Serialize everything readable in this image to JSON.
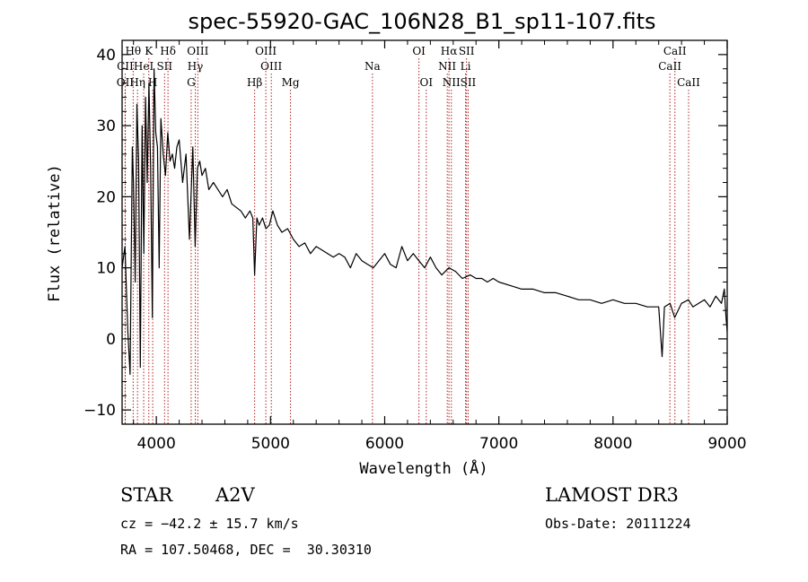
{
  "chart_data": {
    "type": "line",
    "title": "spec-55920-GAC_106N28_B1_sp11-107.fits",
    "xlabel": "Wavelength (Å)",
    "ylabel": "Flux (relative)",
    "xlim": [
      3700,
      9000
    ],
    "ylim": [
      -12,
      42
    ],
    "xticks": [
      4000,
      5000,
      6000,
      7000,
      8000,
      9000
    ],
    "yticks": [
      -10,
      0,
      10,
      20,
      30,
      40
    ],
    "series": [
      {
        "name": "spectrum",
        "x": [
          3700,
          3725,
          3750,
          3770,
          3790,
          3800,
          3815,
          3830,
          3845,
          3860,
          3875,
          3890,
          3905,
          3920,
          3935,
          3950,
          3965,
          3980,
          3995,
          4010,
          4025,
          4040,
          4060,
          4080,
          4100,
          4120,
          4140,
          4160,
          4180,
          4200,
          4230,
          4260,
          4290,
          4320,
          4340,
          4360,
          4380,
          4400,
          4430,
          4460,
          4500,
          4540,
          4580,
          4620,
          4660,
          4700,
          4740,
          4780,
          4820,
          4845,
          4861,
          4880,
          4900,
          4930,
          4960,
          4990,
          5020,
          5060,
          5100,
          5150,
          5200,
          5250,
          5300,
          5350,
          5400,
          5450,
          5500,
          5550,
          5600,
          5650,
          5700,
          5750,
          5800,
          5850,
          5900,
          5950,
          6000,
          6050,
          6100,
          6150,
          6200,
          6250,
          6300,
          6350,
          6400,
          6450,
          6500,
          6563,
          6620,
          6680,
          6750,
          6800,
          6850,
          6900,
          6950,
          7000,
          7100,
          7200,
          7300,
          7400,
          7500,
          7600,
          7700,
          7800,
          7900,
          8000,
          8100,
          8200,
          8300,
          8400,
          8430,
          8450,
          8500,
          8540,
          8600,
          8660,
          8700,
          8750,
          8800,
          8850,
          8900,
          8950,
          8975,
          8990,
          9000
        ],
        "y": [
          10,
          13,
          1,
          -5,
          27,
          22,
          8,
          33,
          25,
          -4,
          30,
          12,
          34,
          22,
          36,
          24,
          3,
          38,
          29,
          27,
          10,
          31,
          26,
          23,
          29,
          25,
          26,
          24,
          27,
          28,
          22,
          26,
          14,
          27,
          13,
          24,
          25,
          23,
          24,
          21,
          22,
          21,
          20,
          21,
          19,
          18.5,
          18,
          17,
          18,
          17,
          9,
          17,
          16,
          17,
          15.5,
          16,
          18,
          16,
          15,
          15.5,
          14,
          13,
          13.5,
          12,
          13,
          12.5,
          12,
          11.5,
          12,
          11.5,
          10,
          12,
          11,
          10.5,
          10,
          11,
          12,
          10.5,
          10,
          13,
          11,
          12,
          11,
          10,
          11.5,
          10,
          9,
          10,
          9.5,
          8.5,
          9,
          8.5,
          8.5,
          8,
          8.5,
          8,
          7.5,
          7,
          7,
          6.5,
          6.5,
          6,
          5.5,
          5.5,
          5,
          5.5,
          5,
          5,
          4.5,
          4.5,
          -2.5,
          4.5,
          5,
          3,
          5,
          5.5,
          4.5,
          5,
          5.5,
          4.5,
          6,
          5,
          7,
          3,
          1
        ]
      }
    ],
    "spectral_lines": [
      {
        "label": "CII",
        "x": 3727,
        "row": 2
      },
      {
        "label": "Hθ",
        "x": 3797,
        "row": 1
      },
      {
        "label": "OII",
        "x": 3727,
        "row": 3
      },
      {
        "label": "Hη",
        "x": 3835,
        "row": 3
      },
      {
        "label": "HeI",
        "x": 3889,
        "row": 2
      },
      {
        "label": "K",
        "x": 3934,
        "row": 1
      },
      {
        "label": "H",
        "x": 3968,
        "row": 3
      },
      {
        "label": "SII",
        "x": 4072,
        "row": 2
      },
      {
        "label": "Hδ",
        "x": 4102,
        "row": 1
      },
      {
        "label": "OIII",
        "x": 4363,
        "row": 1
      },
      {
        "label": "Hγ",
        "x": 4341,
        "row": 2
      },
      {
        "label": "G",
        "x": 4305,
        "row": 3
      },
      {
        "label": "Hβ",
        "x": 4861,
        "row": 3
      },
      {
        "label": "OIII",
        "x": 4959,
        "row": 1
      },
      {
        "label": "OIII",
        "x": 5007,
        "row": 2
      },
      {
        "label": "Mg",
        "x": 5175,
        "row": 3
      },
      {
        "label": "Na",
        "x": 5893,
        "row": 2
      },
      {
        "label": "OI",
        "x": 6300,
        "row": 1
      },
      {
        "label": "OI",
        "x": 6364,
        "row": 3
      },
      {
        "label": "Hα",
        "x": 6563,
        "row": 1
      },
      {
        "label": "SII",
        "x": 6717,
        "row": 1
      },
      {
        "label": "NII",
        "x": 6548,
        "row": 2
      },
      {
        "label": "Li",
        "x": 6708,
        "row": 2
      },
      {
        "label": "NII",
        "x": 6584,
        "row": 3
      },
      {
        "label": "SII",
        "x": 6731,
        "row": 3
      },
      {
        "label": "CaII",
        "x": 8542,
        "row": 1
      },
      {
        "label": "CaII",
        "x": 8498,
        "row": 2
      },
      {
        "label": "CaII",
        "x": 8662,
        "row": 3
      }
    ]
  },
  "info": {
    "object_class": "STAR",
    "subclass": "A2V",
    "survey": "LAMOST DR3",
    "cz": "cz = −42.2 ± 15.7 km/s",
    "obs_date": "Obs-Date: 20111224",
    "coords": "RA = 107.50468, DEC =  30.30310"
  },
  "colors": {
    "line_marker": "#b22222",
    "spectrum": "#000000"
  }
}
